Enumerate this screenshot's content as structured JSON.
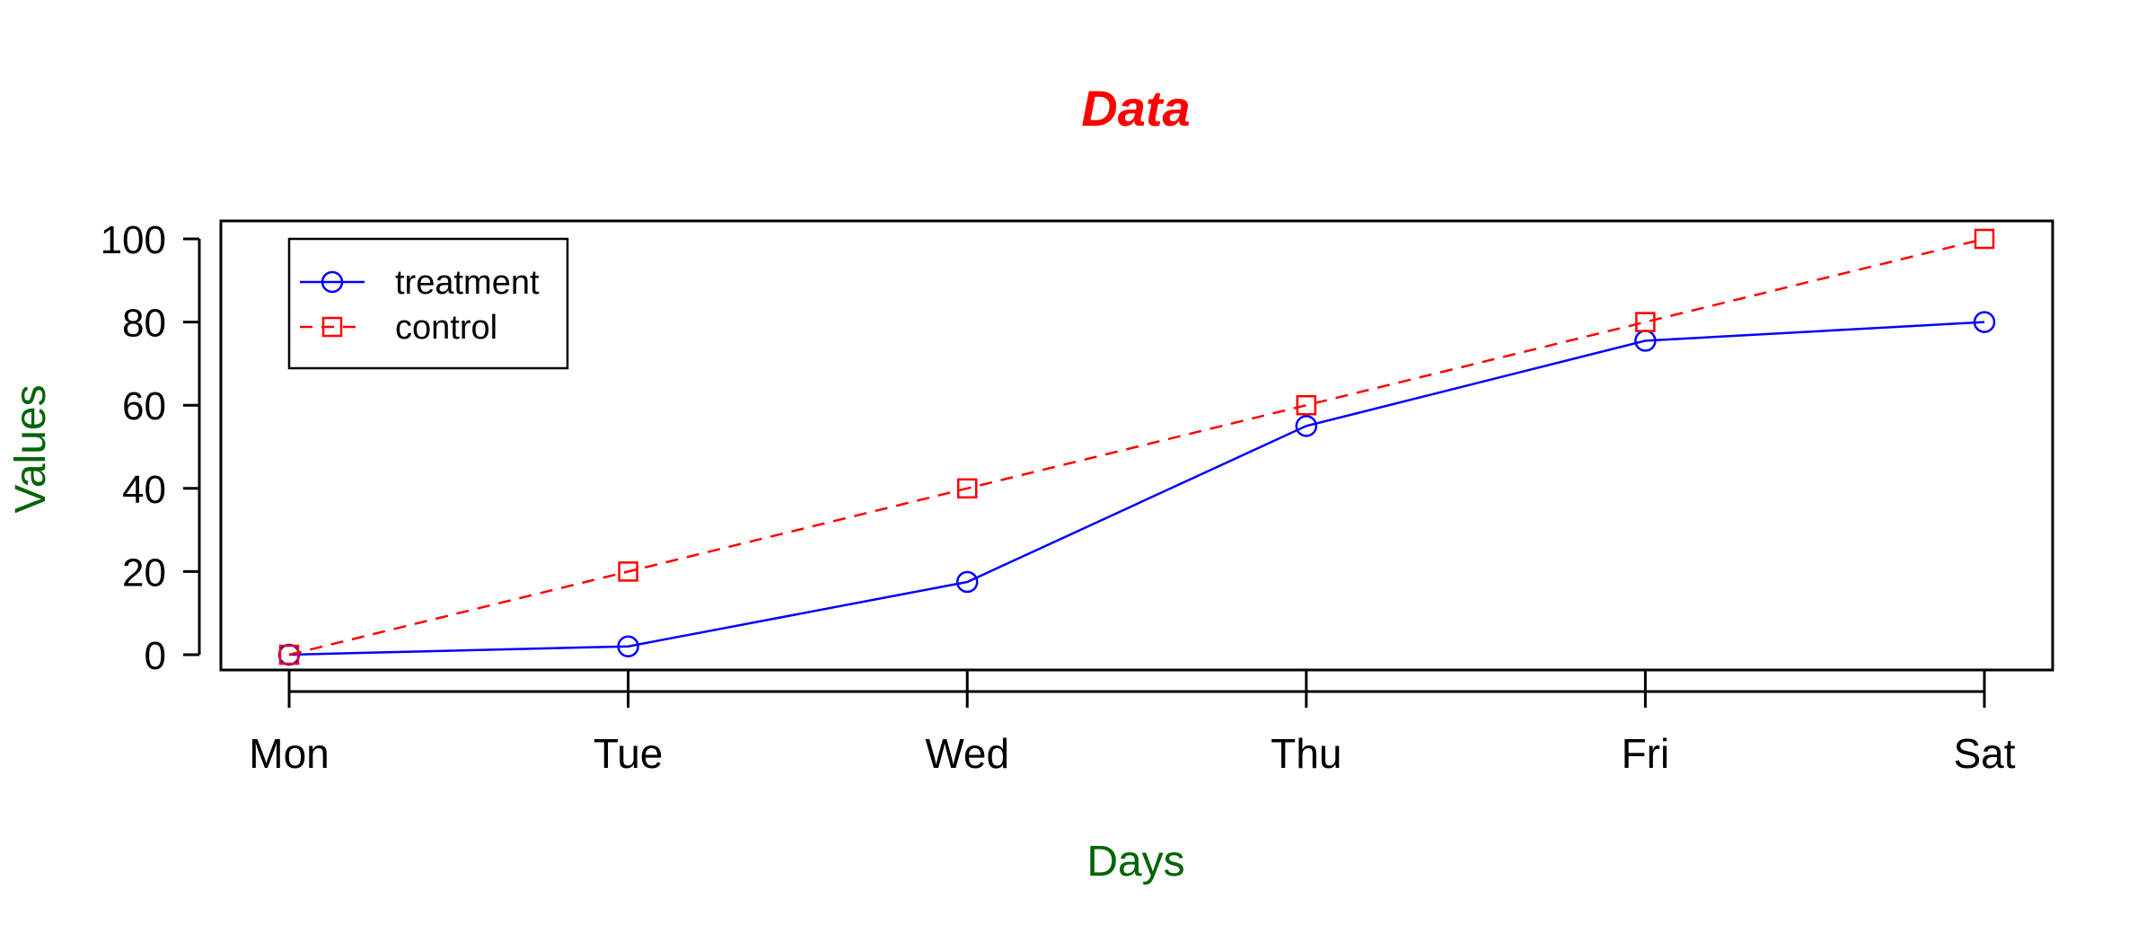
{
  "chart_data": {
    "type": "line",
    "title": "Data",
    "xlabel": "Days",
    "ylabel": "Values",
    "categories": [
      "Mon",
      "Tue",
      "Wed",
      "Thu",
      "Fri",
      "Sat"
    ],
    "ylim": [
      0,
      100
    ],
    "yticks": [
      0,
      20,
      40,
      60,
      80,
      100
    ],
    "grid": false,
    "legend_position": "top-left",
    "series": [
      {
        "name": "treatment",
        "values": [
          0,
          2,
          17.5,
          55,
          75.5,
          80
        ],
        "color": "#0000ff",
        "line_style": "solid",
        "marker": "circle"
      },
      {
        "name": "control",
        "values": [
          0,
          20,
          40,
          60,
          80,
          100
        ],
        "color": "#ff0000",
        "line_style": "dashed",
        "marker": "square"
      }
    ],
    "title_color": "#ff0000",
    "axis_label_color": "#006400"
  }
}
